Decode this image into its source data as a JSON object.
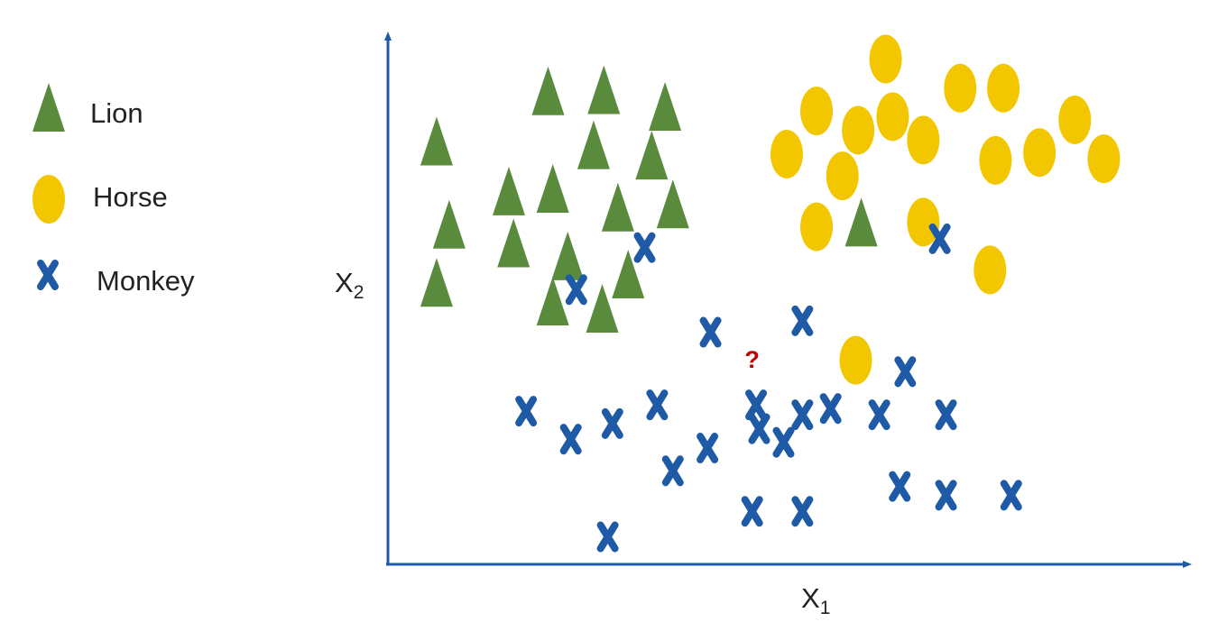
{
  "chart_data": {
    "type": "scatter",
    "title": "",
    "xlabel": {
      "base": "X",
      "sub": "1"
    },
    "ylabel": {
      "base": "X",
      "sub": "2"
    },
    "grid": false,
    "legend_placement": "left",
    "colors": {
      "lion": "#5a8a3c",
      "horse": "#f2c700",
      "monkey": "#1f5aa6",
      "axis": "#1f5aa6",
      "query": "#c00000"
    },
    "series": [
      {
        "name": "Lion",
        "marker": "triangle",
        "points": [
          {
            "x": 0.62,
            "y": 8.15
          },
          {
            "x": 2.04,
            "y": 9.12
          },
          {
            "x": 2.75,
            "y": 9.14
          },
          {
            "x": 3.53,
            "y": 8.82
          },
          {
            "x": 2.62,
            "y": 8.08
          },
          {
            "x": 3.36,
            "y": 7.88
          },
          {
            "x": 1.54,
            "y": 7.19
          },
          {
            "x": 2.1,
            "y": 7.24
          },
          {
            "x": 3.63,
            "y": 6.94
          },
          {
            "x": 0.78,
            "y": 6.55
          },
          {
            "x": 1.6,
            "y": 6.19
          },
          {
            "x": 2.29,
            "y": 5.94
          },
          {
            "x": 2.93,
            "y": 6.88
          },
          {
            "x": 0.62,
            "y": 5.43
          },
          {
            "x": 3.06,
            "y": 5.59
          },
          {
            "x": 2.1,
            "y": 5.07
          },
          {
            "x": 2.73,
            "y": 4.93
          },
          {
            "x": 6.03,
            "y": 6.59
          }
        ]
      },
      {
        "name": "Horse",
        "marker": "ellipse",
        "points": [
          {
            "x": 6.34,
            "y": 9.73
          },
          {
            "x": 7.29,
            "y": 9.17
          },
          {
            "x": 7.84,
            "y": 9.17
          },
          {
            "x": 5.46,
            "y": 8.73
          },
          {
            "x": 5.99,
            "y": 8.36
          },
          {
            "x": 6.43,
            "y": 8.62
          },
          {
            "x": 6.82,
            "y": 8.17
          },
          {
            "x": 8.75,
            "y": 8.56
          },
          {
            "x": 5.08,
            "y": 7.9
          },
          {
            "x": 8.3,
            "y": 7.93
          },
          {
            "x": 7.74,
            "y": 7.78
          },
          {
            "x": 9.12,
            "y": 7.81
          },
          {
            "x": 5.79,
            "y": 7.48
          },
          {
            "x": 5.46,
            "y": 6.5
          },
          {
            "x": 6.82,
            "y": 6.59
          },
          {
            "x": 7.67,
            "y": 5.67
          },
          {
            "x": 5.96,
            "y": 3.93
          }
        ]
      },
      {
        "name": "Monkey",
        "marker": "x",
        "points": [
          {
            "x": 3.27,
            "y": 6.1
          },
          {
            "x": 7.03,
            "y": 6.27
          },
          {
            "x": 2.4,
            "y": 5.29
          },
          {
            "x": 5.28,
            "y": 4.69
          },
          {
            "x": 4.11,
            "y": 4.47
          },
          {
            "x": 6.59,
            "y": 3.71
          },
          {
            "x": 1.76,
            "y": 2.95
          },
          {
            "x": 2.33,
            "y": 2.41
          },
          {
            "x": 2.86,
            "y": 2.71
          },
          {
            "x": 3.43,
            "y": 3.07
          },
          {
            "x": 4.69,
            "y": 3.07
          },
          {
            "x": 4.73,
            "y": 2.61
          },
          {
            "x": 5.28,
            "y": 2.88
          },
          {
            "x": 5.64,
            "y": 3.0
          },
          {
            "x": 6.26,
            "y": 2.88
          },
          {
            "x": 7.11,
            "y": 2.88
          },
          {
            "x": 5.04,
            "y": 2.35
          },
          {
            "x": 4.07,
            "y": 2.24
          },
          {
            "x": 3.63,
            "y": 1.8
          },
          {
            "x": 6.52,
            "y": 1.5
          },
          {
            "x": 7.11,
            "y": 1.33
          },
          {
            "x": 7.94,
            "y": 1.33
          },
          {
            "x": 4.64,
            "y": 1.02
          },
          {
            "x": 5.28,
            "y": 1.02
          },
          {
            "x": 2.8,
            "y": 0.53
          }
        ]
      }
    ],
    "query_point": {
      "label": "?",
      "x": 4.64,
      "y": 3.94
    },
    "xlim": [
      0,
      10
    ],
    "ylim": [
      0,
      10
    ]
  },
  "legend": {
    "items": [
      {
        "key": "lion",
        "label": "Lion"
      },
      {
        "key": "horse",
        "label": "Horse"
      },
      {
        "key": "monkey",
        "label": "Monkey"
      }
    ]
  }
}
